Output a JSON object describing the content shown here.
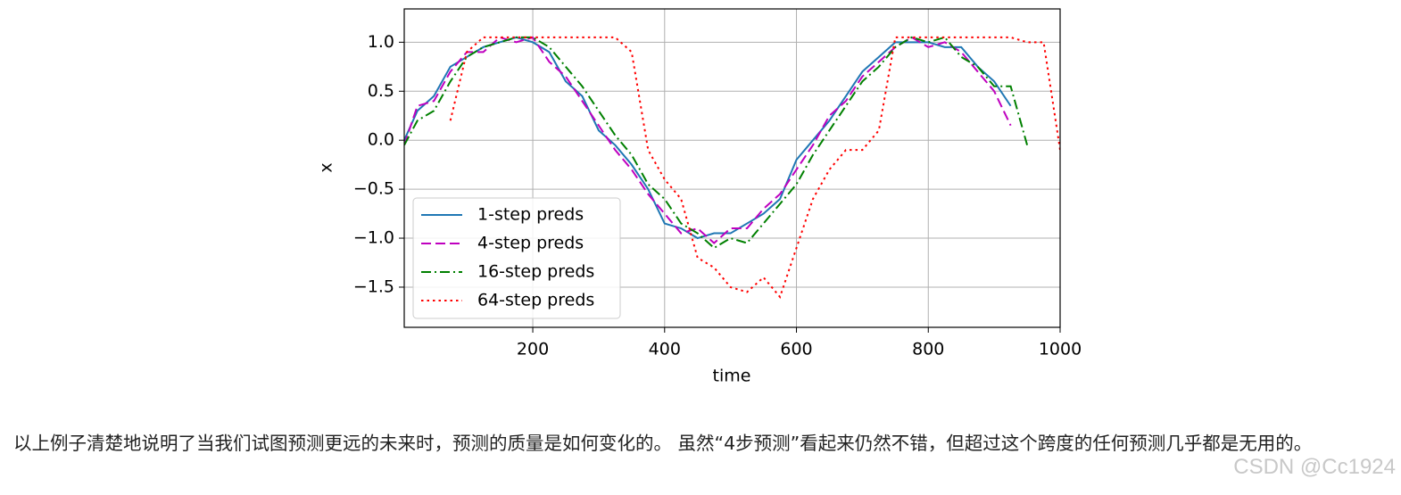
{
  "chart_data": {
    "type": "line",
    "xlabel": "time",
    "ylabel": "x",
    "x": [
      5,
      25,
      50,
      75,
      100,
      125,
      150,
      175,
      200,
      225,
      250,
      275,
      300,
      325,
      350,
      375,
      400,
      425,
      450,
      475,
      500,
      525,
      550,
      575,
      600,
      625,
      650,
      675,
      700,
      725,
      750,
      775,
      800,
      825,
      850,
      875,
      900,
      925,
      950,
      975,
      1000
    ],
    "series": [
      {
        "name": "1-step preds",
        "color": "#1f77b4",
        "dash": "solid",
        "values": [
          0.0,
          0.3,
          0.45,
          0.75,
          0.85,
          0.95,
          1.0,
          1.05,
          1.0,
          0.9,
          0.6,
          0.45,
          0.1,
          -0.05,
          -0.25,
          -0.5,
          -0.85,
          -0.9,
          -1.0,
          -0.95,
          -0.95,
          -0.85,
          -0.75,
          -0.6,
          -0.2,
          0.0,
          0.2,
          0.45,
          0.7,
          0.85,
          1.0,
          1.0,
          1.0,
          0.95,
          0.95,
          0.75,
          0.6,
          0.35,
          null,
          null,
          null
        ]
      },
      {
        "name": "4-step preds",
        "color": "#bf00bf",
        "dash": "dashed",
        "values": [
          -0.05,
          0.35,
          0.4,
          0.7,
          0.9,
          0.9,
          1.05,
          1.0,
          1.05,
          0.8,
          0.65,
          0.4,
          0.15,
          -0.1,
          -0.3,
          -0.55,
          -0.75,
          -0.95,
          -0.9,
          -1.05,
          -0.9,
          -0.9,
          -0.7,
          -0.55,
          -0.3,
          -0.05,
          0.25,
          0.4,
          0.65,
          0.8,
          0.95,
          1.05,
          0.95,
          1.0,
          0.9,
          0.7,
          0.5,
          0.15,
          null,
          null,
          null
        ]
      },
      {
        "name": "16-step preds",
        "color": "#008000",
        "dash": "dashdot",
        "values": [
          -0.05,
          0.2,
          0.3,
          0.6,
          0.85,
          0.95,
          1.0,
          1.05,
          1.05,
          0.95,
          0.75,
          0.55,
          0.3,
          0.05,
          -0.15,
          -0.45,
          -0.6,
          -0.85,
          -0.95,
          -1.1,
          -1.0,
          -1.05,
          -0.85,
          -0.65,
          -0.45,
          -0.15,
          0.1,
          0.35,
          0.6,
          0.75,
          0.95,
          1.05,
          1.0,
          1.05,
          0.85,
          0.75,
          0.55,
          0.55,
          -0.05,
          null,
          null
        ]
      },
      {
        "name": "64-step preds",
        "color": "#ff0000",
        "dash": "dotted",
        "values": [
          null,
          null,
          null,
          0.2,
          0.9,
          1.05,
          1.05,
          1.05,
          1.05,
          1.05,
          1.05,
          1.05,
          1.05,
          1.05,
          0.9,
          -0.1,
          -0.4,
          -0.6,
          -1.2,
          -1.3,
          -1.5,
          -1.55,
          -1.4,
          -1.6,
          -1.1,
          -0.6,
          -0.3,
          -0.1,
          -0.1,
          0.1,
          1.05,
          1.05,
          1.05,
          1.05,
          1.05,
          1.05,
          1.05,
          1.05,
          1.0,
          1.0,
          -0.1
        ]
      }
    ],
    "xlim": [
      5,
      1000
    ],
    "ylim": [
      -1.91,
      1.34
    ],
    "xticks": [
      200,
      400,
      600,
      800,
      1000
    ],
    "yticks": [
      {
        "value": 1.0,
        "label": "1.0"
      },
      {
        "value": 0.5,
        "label": "0.5"
      },
      {
        "value": 0.0,
        "label": "0.0"
      },
      {
        "value": -0.5,
        "label": "−0.5"
      },
      {
        "value": -1.0,
        "label": "−1.0"
      },
      {
        "value": -1.5,
        "label": "−1.5"
      }
    ],
    "grid": true,
    "legend": "lower left"
  },
  "text": {
    "paragraph": "以上例子清楚地说明了当我们试图预测更远的未来时，预测的质量是如何变化的。 虽然“4步预测”看起来仍然不错，但超过这个跨度的任何预测几乎都是无用的。",
    "watermark": "CSDN @Cc1924"
  }
}
